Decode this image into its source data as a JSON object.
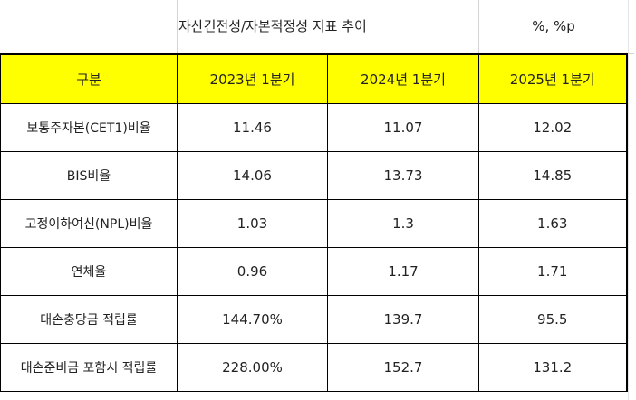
{
  "sheet": {
    "title": "자산건전성/자본적정성 지표 추이",
    "unit": "%, %p"
  },
  "table": {
    "headers": [
      "구분",
      "2023년 1분기",
      "2024년 1분기",
      "2025년 1분기"
    ],
    "rows": [
      {
        "label": "보통주자본(CET1)비율",
        "values": [
          "11.46",
          "11.07",
          "12.02"
        ]
      },
      {
        "label": "BIS비율",
        "values": [
          "14.06",
          "13.73",
          "14.85"
        ]
      },
      {
        "label": "고정이하여신(NPL)비율",
        "values": [
          "1.03",
          "1.3",
          "1.63"
        ]
      },
      {
        "label": "연체율",
        "values": [
          "0.96",
          "1.17",
          "1.71"
        ]
      },
      {
        "label": "대손충당금 적립률",
        "values": [
          "144.70%",
          "139.7",
          "95.5"
        ]
      },
      {
        "label": "대손준비금 포함시 적립률",
        "values": [
          "228.00%",
          "152.7",
          "131.2"
        ]
      }
    ]
  },
  "colors": {
    "header_fill": "#ffff00",
    "border": "#000000",
    "gridline": "#d4d4d4"
  }
}
